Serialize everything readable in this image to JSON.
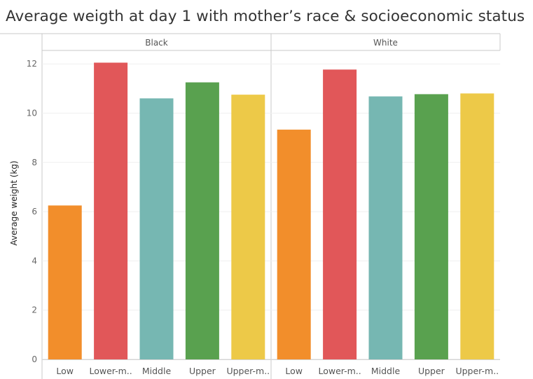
{
  "chart_data": {
    "type": "bar",
    "title": "Average weigth at day 1 with mother’s race & socioeconomic status",
    "ylabel": "Average weight (kg)",
    "xlabel": "",
    "ylim": [
      0,
      12.5
    ],
    "yticks": [
      "0",
      "2",
      "4",
      "6",
      "8",
      "10",
      "12"
    ],
    "grid": true,
    "legend": "none",
    "categories": [
      "Low",
      "Lower-m..",
      "Middle",
      "Upper",
      "Upper-m.."
    ],
    "colors": [
      "#F28E2B",
      "#E15759",
      "#76B7B2",
      "#59A14F",
      "#EDC948"
    ],
    "panels": [
      {
        "name": "Black",
        "values": [
          6.25,
          12.05,
          10.6,
          11.25,
          10.75
        ]
      },
      {
        "name": "White",
        "values": [
          9.33,
          11.77,
          10.68,
          10.77,
          10.8
        ]
      }
    ]
  }
}
